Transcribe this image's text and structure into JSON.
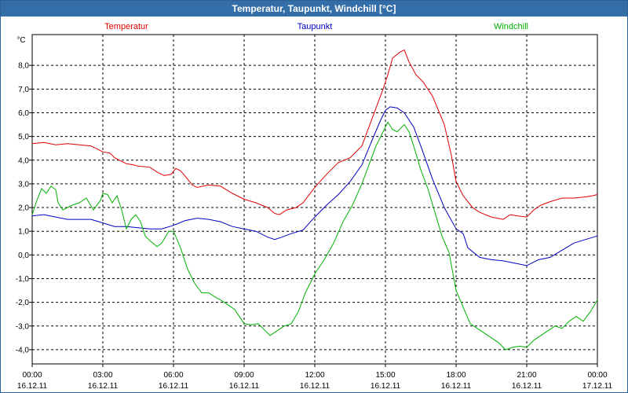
{
  "window": {
    "title": "Temperatur, Taupunkt, Windchill [°C]"
  },
  "chart_data": {
    "type": "line",
    "title": "Temperatur, Taupunkt, Windchill [°C]",
    "ylabel": "°C",
    "ylim": [
      -4.6,
      9.3
    ],
    "yticks": [
      -4.0,
      -3.0,
      -2.0,
      -1.0,
      0.0,
      1.0,
      2.0,
      3.0,
      4.0,
      5.0,
      6.0,
      7.0,
      8.0
    ],
    "ytick_labels": [
      "-4,0",
      "-3,0",
      "-2,0",
      "-1,0",
      "0,0",
      "1,0",
      "2,0",
      "3,0",
      "4,0",
      "5,0",
      "6,0",
      "7,0",
      "8,0"
    ],
    "xlim": [
      0,
      24
    ],
    "xticks": [
      0,
      3,
      6,
      9,
      12,
      15,
      18,
      21,
      24
    ],
    "xtick_labels": [
      {
        "time": "00:00",
        "date": "16.12.11"
      },
      {
        "time": "03:00",
        "date": "16.12.11"
      },
      {
        "time": "06:00",
        "date": "16.12.11"
      },
      {
        "time": "09:00",
        "date": "16.12.11"
      },
      {
        "time": "12:00",
        "date": "16.12.11"
      },
      {
        "time": "15:00",
        "date": "16.12.11"
      },
      {
        "time": "18:00",
        "date": "16.12.11"
      },
      {
        "time": "21:00",
        "date": "16.12.11"
      },
      {
        "time": "00:00",
        "date": "17.12.11"
      }
    ],
    "grid": true,
    "legend_position": "top",
    "x_unit": "hours",
    "series": [
      {
        "name": "Temperatur",
        "color": "#e00000",
        "points": [
          [
            0,
            4.7
          ],
          [
            0.5,
            4.75
          ],
          [
            1,
            4.65
          ],
          [
            1.5,
            4.7
          ],
          [
            2,
            4.65
          ],
          [
            2.5,
            4.6
          ],
          [
            2.8,
            4.45
          ],
          [
            3,
            4.35
          ],
          [
            3.3,
            4.3
          ],
          [
            3.5,
            4.1
          ],
          [
            3.8,
            3.95
          ],
          [
            4,
            3.85
          ],
          [
            4.3,
            3.8
          ],
          [
            4.5,
            3.75
          ],
          [
            5,
            3.7
          ],
          [
            5.3,
            3.5
          ],
          [
            5.6,
            3.35
          ],
          [
            5.9,
            3.4
          ],
          [
            6.1,
            3.65
          ],
          [
            6.3,
            3.55
          ],
          [
            6.6,
            3.2
          ],
          [
            6.8,
            2.95
          ],
          [
            7,
            2.85
          ],
          [
            7.5,
            2.95
          ],
          [
            8,
            2.9
          ],
          [
            8.5,
            2.6
          ],
          [
            9,
            2.35
          ],
          [
            9.5,
            2.2
          ],
          [
            10,
            2.0
          ],
          [
            10.3,
            1.75
          ],
          [
            10.5,
            1.7
          ],
          [
            10.8,
            1.9
          ],
          [
            11.2,
            2.0
          ],
          [
            11.5,
            2.2
          ],
          [
            12,
            2.85
          ],
          [
            12.5,
            3.4
          ],
          [
            13,
            3.9
          ],
          [
            13.5,
            4.1
          ],
          [
            14,
            4.6
          ],
          [
            14.3,
            5.4
          ],
          [
            14.6,
            6.2
          ],
          [
            14.9,
            7.0
          ],
          [
            15.1,
            7.6
          ],
          [
            15.3,
            8.3
          ],
          [
            15.6,
            8.55
          ],
          [
            15.8,
            8.65
          ],
          [
            16,
            8.15
          ],
          [
            16.3,
            7.6
          ],
          [
            16.6,
            7.3
          ],
          [
            17,
            6.7
          ],
          [
            17.5,
            5.5
          ],
          [
            17.8,
            4.2
          ],
          [
            18,
            3.1
          ],
          [
            18.3,
            2.5
          ],
          [
            18.7,
            2.0
          ],
          [
            19,
            1.8
          ],
          [
            19.5,
            1.6
          ],
          [
            20,
            1.5
          ],
          [
            20.3,
            1.7
          ],
          [
            20.6,
            1.65
          ],
          [
            21,
            1.6
          ],
          [
            21.3,
            1.9
          ],
          [
            21.6,
            2.1
          ],
          [
            22,
            2.25
          ],
          [
            22.5,
            2.4
          ],
          [
            23,
            2.4
          ],
          [
            23.5,
            2.45
          ],
          [
            23.8,
            2.5
          ],
          [
            24,
            2.55
          ]
        ]
      },
      {
        "name": "Taupunkt",
        "color": "#0000c0",
        "points": [
          [
            0,
            1.65
          ],
          [
            0.5,
            1.7
          ],
          [
            1,
            1.6
          ],
          [
            1.5,
            1.5
          ],
          [
            2,
            1.5
          ],
          [
            2.5,
            1.5
          ],
          [
            3,
            1.35
          ],
          [
            3.5,
            1.2
          ],
          [
            4,
            1.2
          ],
          [
            4.5,
            1.15
          ],
          [
            5,
            1.1
          ],
          [
            5.5,
            1.1
          ],
          [
            6,
            1.25
          ],
          [
            6.5,
            1.45
          ],
          [
            7,
            1.55
          ],
          [
            7.5,
            1.5
          ],
          [
            8,
            1.4
          ],
          [
            8.5,
            1.2
          ],
          [
            9,
            1.1
          ],
          [
            9.5,
            1.0
          ],
          [
            10,
            0.75
          ],
          [
            10.3,
            0.65
          ],
          [
            10.6,
            0.75
          ],
          [
            11,
            0.9
          ],
          [
            11.5,
            1.05
          ],
          [
            12,
            1.6
          ],
          [
            12.5,
            2.1
          ],
          [
            13,
            2.55
          ],
          [
            13.5,
            3.1
          ],
          [
            14,
            3.8
          ],
          [
            14.5,
            5.0
          ],
          [
            14.8,
            5.7
          ],
          [
            15,
            6.1
          ],
          [
            15.2,
            6.25
          ],
          [
            15.5,
            6.2
          ],
          [
            15.8,
            6.0
          ],
          [
            16.2,
            5.4
          ],
          [
            16.5,
            4.6
          ],
          [
            17,
            3.2
          ],
          [
            17.5,
            2.0
          ],
          [
            18,
            1.1
          ],
          [
            18.3,
            0.9
          ],
          [
            18.5,
            0.3
          ],
          [
            19,
            -0.1
          ],
          [
            19.5,
            -0.2
          ],
          [
            20,
            -0.25
          ],
          [
            20.5,
            -0.35
          ],
          [
            21,
            -0.45
          ],
          [
            21.5,
            -0.2
          ],
          [
            22,
            -0.1
          ],
          [
            22.5,
            0.2
          ],
          [
            23,
            0.5
          ],
          [
            23.5,
            0.65
          ],
          [
            24,
            0.8
          ]
        ]
      },
      {
        "name": "Windchill",
        "color": "#00b000",
        "points": [
          [
            0,
            1.7
          ],
          [
            0.2,
            2.3
          ],
          [
            0.4,
            2.8
          ],
          [
            0.6,
            2.6
          ],
          [
            0.8,
            2.9
          ],
          [
            1,
            2.75
          ],
          [
            1.1,
            2.2
          ],
          [
            1.3,
            1.9
          ],
          [
            1.5,
            2.0
          ],
          [
            1.7,
            2.1
          ],
          [
            2,
            2.2
          ],
          [
            2.3,
            2.4
          ],
          [
            2.6,
            1.9
          ],
          [
            2.9,
            2.3
          ],
          [
            3,
            2.6
          ],
          [
            3.2,
            2.55
          ],
          [
            3.4,
            2.2
          ],
          [
            3.6,
            2.5
          ],
          [
            3.8,
            1.9
          ],
          [
            4,
            1.1
          ],
          [
            4.2,
            1.5
          ],
          [
            4.4,
            1.7
          ],
          [
            4.6,
            1.4
          ],
          [
            4.8,
            0.8
          ],
          [
            5,
            0.6
          ],
          [
            5.3,
            0.35
          ],
          [
            5.5,
            0.5
          ],
          [
            5.8,
            1.0
          ],
          [
            6,
            1.0
          ],
          [
            6.3,
            0.3
          ],
          [
            6.6,
            -0.6
          ],
          [
            6.9,
            -1.2
          ],
          [
            7.2,
            -1.6
          ],
          [
            7.5,
            -1.6
          ],
          [
            7.8,
            -1.8
          ],
          [
            8,
            -1.9
          ],
          [
            8.3,
            -2.1
          ],
          [
            8.6,
            -2.3
          ],
          [
            9,
            -2.9
          ],
          [
            9.3,
            -2.95
          ],
          [
            9.6,
            -2.9
          ],
          [
            9.9,
            -3.2
          ],
          [
            10.1,
            -3.4
          ],
          [
            10.4,
            -3.2
          ],
          [
            10.7,
            -3.0
          ],
          [
            11,
            -2.9
          ],
          [
            11.3,
            -2.4
          ],
          [
            11.6,
            -1.6
          ],
          [
            12,
            -0.8
          ],
          [
            12.4,
            -0.2
          ],
          [
            12.8,
            0.5
          ],
          [
            13.2,
            1.4
          ],
          [
            13.6,
            2.1
          ],
          [
            14,
            3.0
          ],
          [
            14.3,
            3.8
          ],
          [
            14.6,
            4.6
          ],
          [
            14.9,
            5.2
          ],
          [
            15.1,
            5.6
          ],
          [
            15.3,
            5.3
          ],
          [
            15.5,
            5.2
          ],
          [
            15.8,
            5.5
          ],
          [
            16,
            5.2
          ],
          [
            16.2,
            4.6
          ],
          [
            16.5,
            3.6
          ],
          [
            16.8,
            2.8
          ],
          [
            17.1,
            1.8
          ],
          [
            17.4,
            0.8
          ],
          [
            17.7,
            0.1
          ],
          [
            18,
            -1.5
          ],
          [
            18.3,
            -2.2
          ],
          [
            18.6,
            -2.9
          ],
          [
            18.9,
            -3.1
          ],
          [
            19.2,
            -3.3
          ],
          [
            19.5,
            -3.5
          ],
          [
            19.8,
            -3.7
          ],
          [
            20.1,
            -4.0
          ],
          [
            20.4,
            -3.9
          ],
          [
            20.7,
            -3.85
          ],
          [
            21,
            -3.9
          ],
          [
            21.3,
            -3.6
          ],
          [
            21.6,
            -3.4
          ],
          [
            21.9,
            -3.2
          ],
          [
            22.2,
            -3.0
          ],
          [
            22.5,
            -3.1
          ],
          [
            22.8,
            -2.8
          ],
          [
            23.1,
            -2.6
          ],
          [
            23.4,
            -2.8
          ],
          [
            23.7,
            -2.4
          ],
          [
            24,
            -1.9
          ]
        ]
      }
    ]
  }
}
